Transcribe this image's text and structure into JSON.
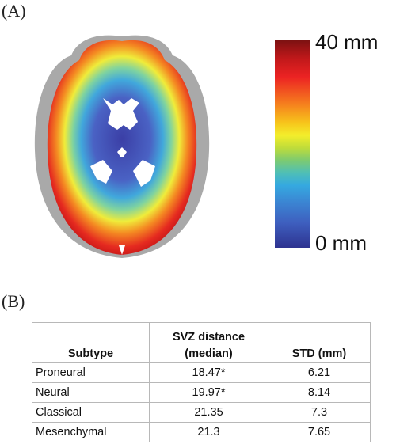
{
  "panel_a": {
    "label": "(A)",
    "colorbar": {
      "max_label": "40 mm",
      "min_label": "0 mm"
    }
  },
  "panel_b": {
    "label": "(B)",
    "table": {
      "headers": [
        "Subtype",
        "SVZ distance (median)",
        "STD (mm)"
      ],
      "rows": [
        [
          "Proneural",
          "18.47*",
          "6.21"
        ],
        [
          "Neural",
          "19.97*",
          "8.14"
        ],
        [
          "Classical",
          "21.35",
          "7.3"
        ],
        [
          "Mesenchymal",
          "21.3",
          "7.65"
        ]
      ]
    }
  }
}
